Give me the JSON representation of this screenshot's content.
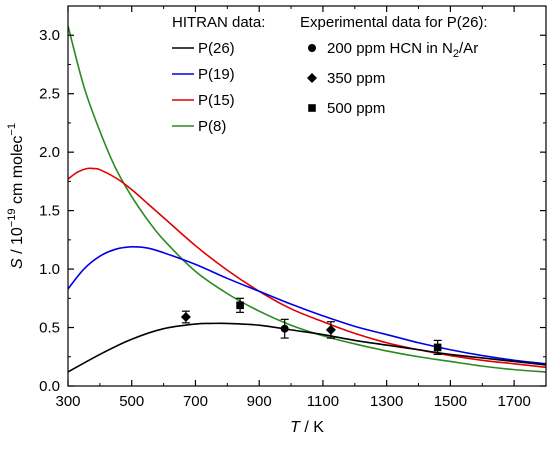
{
  "chart_data": {
    "type": "line",
    "xlim": [
      300,
      1800
    ],
    "ylim": [
      0,
      3.25
    ],
    "x_ticks": [
      300,
      500,
      700,
      900,
      1100,
      1300,
      1500,
      1700
    ],
    "y_ticks": [
      0.0,
      0.5,
      1.0,
      1.5,
      2.0,
      2.5,
      3.0
    ],
    "x_tick_labels": [
      "300",
      "500",
      "700",
      "900",
      "1100",
      "1300",
      "1500",
      "1700"
    ],
    "y_tick_labels": [
      "0.0",
      "0.5",
      "1.0",
      "1.5",
      "2.0",
      "2.5",
      "3.0"
    ],
    "xlabel": {
      "italic": "T",
      "rest": " / K"
    },
    "ylabel": {
      "italic": "S",
      "rest": " / 10",
      "sup": "−19",
      "tail": " cm molec",
      "tail_sup": "−1"
    },
    "grid": false,
    "series_legend_title": "HITRAN data:",
    "series": [
      {
        "name": "P(26)",
        "color": "#000000",
        "x": [
          300,
          400,
          500,
          600,
          700,
          750,
          800,
          900,
          1000,
          1100,
          1200,
          1300,
          1400,
          1500,
          1600,
          1700,
          1800
        ],
        "values": [
          0.12,
          0.27,
          0.4,
          0.49,
          0.53,
          0.535,
          0.535,
          0.52,
          0.48,
          0.44,
          0.39,
          0.35,
          0.31,
          0.27,
          0.24,
          0.21,
          0.18
        ]
      },
      {
        "name": "P(19)",
        "color": "#0000e6",
        "x": [
          300,
          350,
          400,
          450,
          500,
          550,
          600,
          700,
          800,
          900,
          1000,
          1100,
          1200,
          1300,
          1400,
          1500,
          1600,
          1700,
          1800
        ],
        "values": [
          0.83,
          1.0,
          1.11,
          1.17,
          1.19,
          1.18,
          1.14,
          1.04,
          0.92,
          0.81,
          0.7,
          0.6,
          0.51,
          0.44,
          0.37,
          0.31,
          0.26,
          0.22,
          0.19
        ]
      },
      {
        "name": "P(15)",
        "color": "#e00000",
        "x": [
          300,
          330,
          360,
          380,
          400,
          450,
          500,
          550,
          600,
          700,
          800,
          900,
          1000,
          1100,
          1200,
          1300,
          1400,
          1500,
          1600,
          1700,
          1800
        ],
        "values": [
          1.77,
          1.83,
          1.86,
          1.86,
          1.85,
          1.78,
          1.68,
          1.56,
          1.44,
          1.2,
          0.99,
          0.81,
          0.66,
          0.55,
          0.45,
          0.37,
          0.31,
          0.26,
          0.22,
          0.19,
          0.16
        ]
      },
      {
        "name": "P(8)",
        "color": "#2a8a1f",
        "x": [
          300,
          350,
          400,
          450,
          500,
          550,
          600,
          700,
          800,
          900,
          1000,
          1100,
          1200,
          1300,
          1400,
          1500,
          1600,
          1700,
          1800
        ],
        "values": [
          3.08,
          2.56,
          2.18,
          1.86,
          1.62,
          1.42,
          1.25,
          0.98,
          0.79,
          0.64,
          0.52,
          0.43,
          0.36,
          0.3,
          0.25,
          0.21,
          0.17,
          0.14,
          0.12
        ]
      }
    ],
    "points_legend_title": "Experimental data for P(26):",
    "points": [
      {
        "name": "200 ppm HCN in N₂/Ar",
        "label_main": "200 ppm HCN in N",
        "label_sub": "2",
        "label_tail": "/Ar",
        "marker": "circle",
        "data": [
          {
            "x": 980,
            "y": 0.49,
            "err": 0.08
          }
        ]
      },
      {
        "name": "350 ppm",
        "label_main": "350 ppm",
        "marker": "diamond",
        "data": [
          {
            "x": 670,
            "y": 0.59,
            "err": 0.05
          },
          {
            "x": 1125,
            "y": 0.48,
            "err": 0.07
          }
        ]
      },
      {
        "name": "500 ppm",
        "label_main": "500 ppm",
        "marker": "square",
        "data": [
          {
            "x": 840,
            "y": 0.69,
            "err": 0.06
          },
          {
            "x": 1460,
            "y": 0.33,
            "err": 0.06
          }
        ]
      }
    ]
  }
}
